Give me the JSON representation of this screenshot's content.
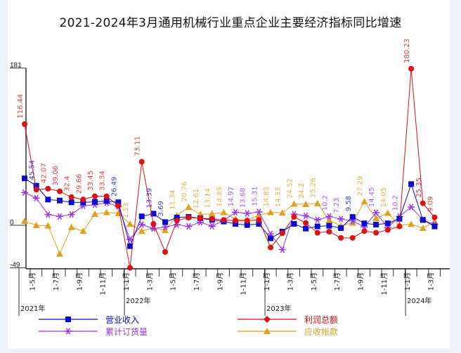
{
  "chart_data": {
    "type": "line",
    "title": "2021-2024年3月通用机械行业重点企业主要经济指标同比增速",
    "ylim": [
      -49,
      181
    ],
    "yticks": [
      "181",
      "0",
      "-49"
    ],
    "grid": false,
    "legend_position": "bottom",
    "xticks": [
      {
        "i": 1,
        "label": "1-5月"
      },
      {
        "i": 3,
        "label": "1-7月"
      },
      {
        "i": 5,
        "label": "1-9月"
      },
      {
        "i": 7,
        "label": "1-11月"
      },
      {
        "i": 9,
        "label": "1-1月"
      },
      {
        "i": 11,
        "label": "1-3月"
      },
      {
        "i": 13,
        "label": "1-5月"
      },
      {
        "i": 15,
        "label": "1-7月"
      },
      {
        "i": 17,
        "label": "1-9月"
      },
      {
        "i": 19,
        "label": "1-11月"
      },
      {
        "i": 21,
        "label": "1-1月"
      },
      {
        "i": 23,
        "label": "1-3月"
      },
      {
        "i": 25,
        "label": "1-5月"
      },
      {
        "i": 27,
        "label": "1-7月"
      },
      {
        "i": 29,
        "label": "1-9月"
      },
      {
        "i": 31,
        "label": "1-11月"
      },
      {
        "i": 33,
        "label": "1-1月"
      },
      {
        "i": 35,
        "label": "1-3月"
      }
    ],
    "years": [
      {
        "i": 0,
        "label": "2021年"
      },
      {
        "i": 9,
        "label": "2022年"
      },
      {
        "i": 21,
        "label": "2023年"
      },
      {
        "i": 33,
        "label": "2024年"
      }
    ],
    "series": [
      {
        "name": "营业收入",
        "color": "#0a0ad0",
        "marker": "square",
        "values": [
          54,
          45.54,
          29.6,
          28.5,
          26.4,
          26.4,
          27,
          28,
          26.49,
          -24,
          10.3,
          13.39,
          3.69,
          8.9,
          9.7,
          8.1,
          6.2,
          4.3,
          1.6,
          0.3,
          1.6,
          -15,
          -7.3,
          1.6,
          -3.8,
          -1.3,
          -0.5,
          -3.2,
          9.58,
          2.2,
          0.8,
          2.2,
          7.5,
          47.4,
          6.2,
          -1.3
        ]
      },
      {
        "name": "利润总额",
        "color": "#dd1111",
        "marker": "circle",
        "values": [
          116.44,
          41,
          42.07,
          39.06,
          32.4,
          29.66,
          33.45,
          33.34,
          22.4,
          -49,
          73.11,
          1.6,
          -30.7,
          5.4,
          8.9,
          8.1,
          7.4,
          6.2,
          5.4,
          5.4,
          6.2,
          -25.6,
          -9.2,
          9.7,
          2.7,
          -8.6,
          -7.3,
          -14.5,
          -14.5,
          -6.7,
          -8.6,
          -5.4,
          -1.3,
          180.23,
          25.35,
          9.09
        ]
      },
      {
        "name": "累计订货量",
        "color": "#9933ee",
        "marker": "star",
        "values": [
          37.7,
          31.3,
          12.4,
          10.2,
          12.4,
          22.4,
          23.7,
          25.9,
          21.6,
          -16.2,
          0.8,
          -3.8,
          -1.9,
          0.8,
          -1.3,
          3.5,
          -1,
          5.4,
          14.97,
          13.68,
          15.31,
          -10,
          -28,
          12.9,
          10.8,
          6.2,
          10.2,
          7.23,
          5,
          -1.9,
          14.45,
          -2.6,
          10.2,
          21,
          6.2,
          0.8
        ]
      },
      {
        "name": "应收帐款",
        "color": "#e0a020",
        "marker": "triangle",
        "values": [
          4.8,
          0,
          -0.5,
          -32.9,
          -2.2,
          -6.7,
          12.9,
          14.8,
          13.7,
          1.53,
          -6.7,
          -2.7,
          -5.9,
          11.34,
          20.76,
          12.61,
          13.14,
          14.85,
          7,
          6.2,
          11.6,
          14.83,
          14.33,
          24.52,
          24.2,
          25.26,
          5.7,
          -0.5,
          2.7,
          27.29,
          8.1,
          14.05,
          0,
          1.3,
          -3.2,
          4.3
        ]
      }
    ],
    "data_labels": [
      {
        "s": 1,
        "i": 0,
        "text": "116.44"
      },
      {
        "s": 0,
        "i": 1,
        "text": "45.54"
      },
      {
        "s": 1,
        "i": 2,
        "text": "42.07"
      },
      {
        "s": 1,
        "i": 3,
        "text": "39.06"
      },
      {
        "s": 1,
        "i": 4,
        "text": "32.4"
      },
      {
        "s": 1,
        "i": 5,
        "text": "29.66"
      },
      {
        "s": 1,
        "i": 6,
        "text": "33.45"
      },
      {
        "s": 1,
        "i": 7,
        "text": "33.34"
      },
      {
        "s": 0,
        "i": 8,
        "text": "26.49"
      },
      {
        "s": 3,
        "i": 9,
        "text": "1.53"
      },
      {
        "s": 1,
        "i": 10,
        "text": "73.11"
      },
      {
        "s": 0,
        "i": 11,
        "text": "13.39"
      },
      {
        "s": 0,
        "i": 12,
        "text": "3.69"
      },
      {
        "s": 3,
        "i": 13,
        "text": "11.34"
      },
      {
        "s": 3,
        "i": 14,
        "text": "20.76"
      },
      {
        "s": 3,
        "i": 15,
        "text": "12.61"
      },
      {
        "s": 3,
        "i": 16,
        "text": "13.14"
      },
      {
        "s": 3,
        "i": 17,
        "text": "14.85"
      },
      {
        "s": 2,
        "i": 18,
        "text": "14.97"
      },
      {
        "s": 2,
        "i": 19,
        "text": "13.68"
      },
      {
        "s": 2,
        "i": 20,
        "text": "15.31"
      },
      {
        "s": 3,
        "i": 21,
        "text": "14.83"
      },
      {
        "s": 3,
        "i": 22,
        "text": "14.33"
      },
      {
        "s": 3,
        "i": 23,
        "text": "24.52"
      },
      {
        "s": 3,
        "i": 24,
        "text": "24.2"
      },
      {
        "s": 3,
        "i": 25,
        "text": "25.26"
      },
      {
        "s": 2,
        "i": 26,
        "text": "10.2"
      },
      {
        "s": 2,
        "i": 27,
        "text": "7.23"
      },
      {
        "s": 0,
        "i": 28,
        "text": "9.58"
      },
      {
        "s": 3,
        "i": 29,
        "text": "27.29"
      },
      {
        "s": 2,
        "i": 30,
        "text": "14.45"
      },
      {
        "s": 3,
        "i": 31,
        "text": "14.05"
      },
      {
        "s": 2,
        "i": 32,
        "text": "10.2"
      },
      {
        "s": 1,
        "i": 33,
        "text": "180.23"
      },
      {
        "s": 1,
        "i": 34,
        "text": "25.35"
      },
      {
        "s": 1,
        "i": 35,
        "text": "9.09"
      }
    ]
  }
}
